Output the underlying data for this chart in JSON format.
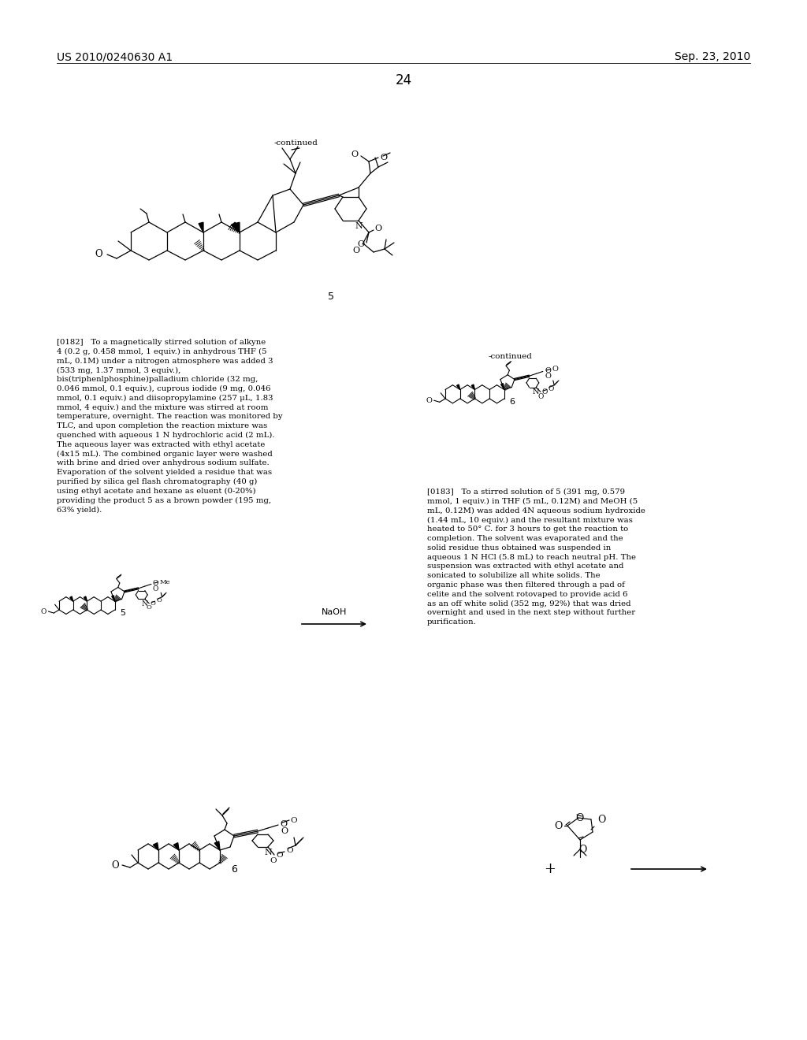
{
  "bg": "#ffffff",
  "header_left": "US 2010/0240630 A1",
  "header_right": "Sep. 23, 2010",
  "page_num": "24",
  "para_0182": "[0182]   To a magnetically stirred solution of alkyne 4 (0.2 g, 0.458 mmol, 1 equiv.) in anhydrous THF (5 mL, 0.1M) under a nitrogen atmosphere was added 3 (533 mg, 1.37 mmol, 3 equiv.), bis(triphenlphosphine)palladium chloride (32 mg, 0.046 mmol, 0.1 equiv.), cuprous iodide (9 mg, 0.046 mmol, 0.1 equiv.) and diisopropylamine (257 μL, 1.83 mmol, 4 equiv.) and the mixture was stirred at room temperature, overnight. The reaction was monitored by TLC, and upon completion the reaction mixture was quenched with aqueous 1 N hydrochloric acid (2 mL). The aqueous layer was extracted with ethyl acetate (4x15 mL). The combined organic layer were washed with brine and dried over anhydrous sodium sulfate. Evaporation of the solvent yielded a residue that was purified by silica gel flash chromatography (40 g) using ethyl acetate and hexane as eluent (0-20%) providing the product 5 as a brown powder (195 mg, 63% yield).",
  "para_0183": "[0183]   To a stirred solution of 5 (391 mg, 0.579 mmol, 1 equiv.) in THF (5 mL, 0.12M) and MeOH (5 mL, 0.12M) was added 4N aqueous sodium hydroxide (1.44 mL, 10 equiv.) and the resultant mixture was heated to 50° C. for 3 hours to get the reaction to completion. The solvent was evaporated and the solid residue thus obtained was suspended in aqueous 1 N HCl (5.8 mL) to reach neutral pH. The suspension was extracted with ethyl acetate and sonicated to solubilize all white solids. The organic phase was then filtered through a pad of celite and the solvent rotovaped to provide acid 6 as an off white solid (352 mg, 92%) that was dried overnight and used in the next step without further purification."
}
